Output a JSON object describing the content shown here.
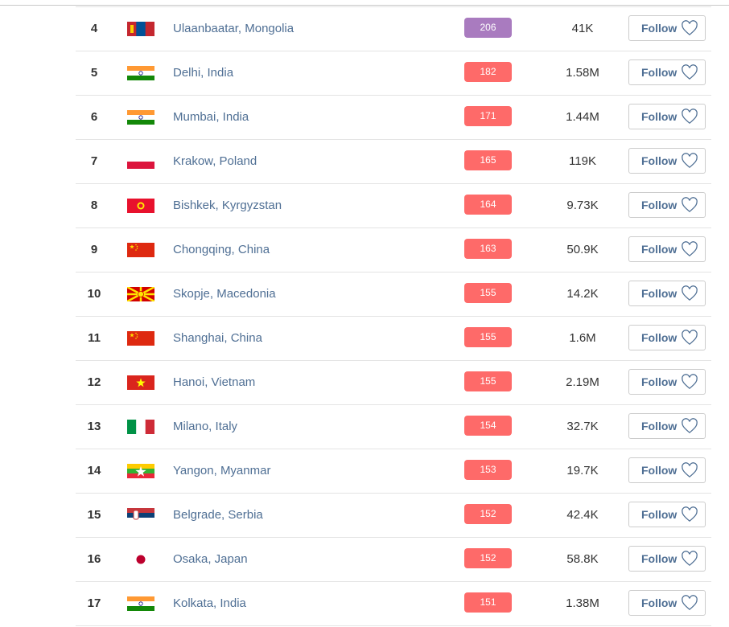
{
  "colors": {
    "aqi_purple": "#a97bbf",
    "aqi_red": "#fe6a69"
  },
  "follow_label": "Follow",
  "rows": [
    {
      "rank": "4",
      "flag": "mongolia",
      "city": "Ulaanbaatar, Mongolia",
      "aqi": "206",
      "level": "purple",
      "followers": "41K"
    },
    {
      "rank": "5",
      "flag": "india",
      "city": "Delhi, India",
      "aqi": "182",
      "level": "red",
      "followers": "1.58M"
    },
    {
      "rank": "6",
      "flag": "india",
      "city": "Mumbai, India",
      "aqi": "171",
      "level": "red",
      "followers": "1.44M"
    },
    {
      "rank": "7",
      "flag": "poland",
      "city": "Krakow, Poland",
      "aqi": "165",
      "level": "red",
      "followers": "119K"
    },
    {
      "rank": "8",
      "flag": "kyrgyzstan",
      "city": "Bishkek, Kyrgyzstan",
      "aqi": "164",
      "level": "red",
      "followers": "9.73K"
    },
    {
      "rank": "9",
      "flag": "china",
      "city": "Chongqing, China",
      "aqi": "163",
      "level": "red",
      "followers": "50.9K"
    },
    {
      "rank": "10",
      "flag": "macedonia",
      "city": "Skopje, Macedonia",
      "aqi": "155",
      "level": "red",
      "followers": "14.2K"
    },
    {
      "rank": "11",
      "flag": "china",
      "city": "Shanghai, China",
      "aqi": "155",
      "level": "red",
      "followers": "1.6M"
    },
    {
      "rank": "12",
      "flag": "vietnam",
      "city": "Hanoi, Vietnam",
      "aqi": "155",
      "level": "red",
      "followers": "2.19M"
    },
    {
      "rank": "13",
      "flag": "italy",
      "city": "Milano, Italy",
      "aqi": "154",
      "level": "red",
      "followers": "32.7K"
    },
    {
      "rank": "14",
      "flag": "myanmar",
      "city": "Yangon, Myanmar",
      "aqi": "153",
      "level": "red",
      "followers": "19.7K"
    },
    {
      "rank": "15",
      "flag": "serbia",
      "city": "Belgrade, Serbia",
      "aqi": "152",
      "level": "red",
      "followers": "42.4K"
    },
    {
      "rank": "16",
      "flag": "japan",
      "city": "Osaka, Japan",
      "aqi": "152",
      "level": "red",
      "followers": "58.8K"
    },
    {
      "rank": "17",
      "flag": "india",
      "city": "Kolkata, India",
      "aqi": "151",
      "level": "red",
      "followers": "1.38M"
    }
  ]
}
